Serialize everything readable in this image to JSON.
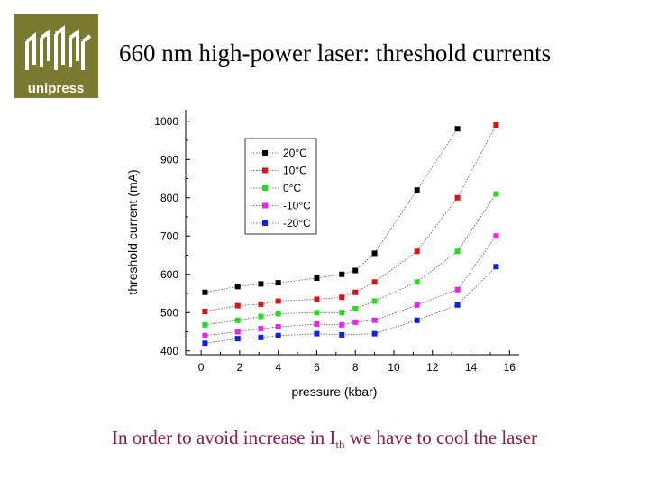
{
  "logo": {
    "text": "unipress",
    "color": "#7a7a30"
  },
  "title": "660 nm high-power laser: threshold currents",
  "caption": {
    "before": "In order to avoid increase in I",
    "subscript": "th",
    "after": " we have to cool the laser"
  },
  "chart_data": {
    "type": "scatter",
    "xlabel": "pressure (kbar)",
    "ylabel": "threshold current (mA)",
    "xlim": [
      -0.8,
      16.5
    ],
    "ylim": [
      390,
      1030
    ],
    "xticks": [
      "0",
      "2",
      "4",
      "6",
      "8",
      "10",
      "12",
      "14",
      "16"
    ],
    "yticks": [
      "400",
      "500",
      "600",
      "700",
      "800",
      "900",
      "1000"
    ],
    "grid": false,
    "legend": "top-left",
    "series": [
      {
        "name": "20°C",
        "color": "#000000",
        "x": [
          0.2,
          1.9,
          3.1,
          4.0,
          6.0,
          7.3,
          8.0,
          9.0,
          11.2,
          13.3
        ],
        "y": [
          553,
          568,
          575,
          578,
          590,
          600,
          610,
          655,
          820,
          980
        ]
      },
      {
        "name": "10°C",
        "color": "#dd1111",
        "x": [
          0.2,
          1.9,
          3.1,
          4.0,
          6.0,
          7.3,
          8.0,
          9.0,
          11.2,
          13.3,
          15.3
        ],
        "y": [
          503,
          518,
          522,
          530,
          535,
          540,
          553,
          580,
          660,
          800,
          990
        ]
      },
      {
        "name": "0°C",
        "color": "#22dd22",
        "x": [
          0.2,
          1.9,
          3.1,
          4.0,
          6.0,
          7.3,
          8.0,
          9.0,
          11.2,
          13.3,
          15.3
        ],
        "y": [
          468,
          480,
          490,
          497,
          500,
          500,
          510,
          530,
          580,
          660,
          810
        ]
      },
      {
        "name": "-10°C",
        "color": "#ee22ee",
        "x": [
          0.2,
          1.9,
          3.1,
          4.0,
          6.0,
          7.3,
          8.0,
          9.0,
          11.2,
          13.3,
          15.3
        ],
        "y": [
          440,
          450,
          458,
          463,
          470,
          468,
          475,
          480,
          520,
          560,
          700
        ]
      },
      {
        "name": "-20°C",
        "color": "#1122dd",
        "x": [
          0.2,
          1.9,
          3.1,
          4.0,
          6.0,
          7.3,
          9.0,
          11.2,
          13.3,
          15.3
        ],
        "y": [
          420,
          432,
          435,
          440,
          445,
          442,
          445,
          480,
          520,
          620
        ]
      }
    ]
  }
}
